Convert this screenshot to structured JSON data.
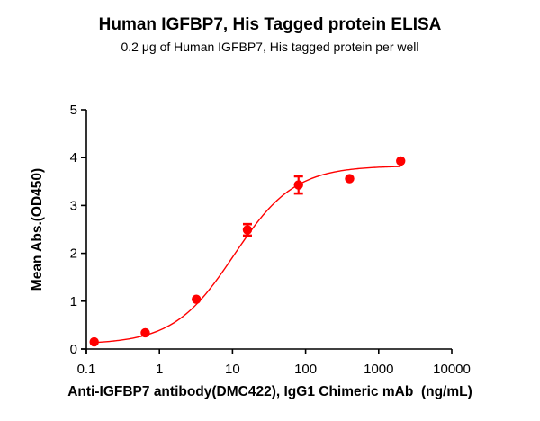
{
  "chart_data": {
    "type": "scatter",
    "title": "Human IGFBP7, His Tagged protein ELISA",
    "subtitle": "0.2 μg of Human IGFBP7, His tagged protein per well",
    "xlabel": "Anti-IGFBP7 antibody(DMC422), IgG1 Chimeric mAb  (ng/mL)",
    "ylabel": "Mean Abs.(OD450)",
    "xscale": "log",
    "xlim": [
      0.1,
      10000
    ],
    "ylim": [
      0,
      5
    ],
    "xticks": [
      "0.1",
      "1",
      "10",
      "100",
      "1000",
      "10000"
    ],
    "yticks": [
      "0",
      "1",
      "2",
      "3",
      "4",
      "5"
    ],
    "grid": false,
    "legend": null,
    "series": [
      {
        "name": "Human IGFBP7, His Tagged protein",
        "color": "#ff0000",
        "x": [
          0.128,
          0.64,
          3.2,
          16,
          80,
          400,
          2000
        ],
        "y": [
          0.15,
          0.34,
          1.04,
          2.49,
          3.43,
          3.56,
          3.93
        ],
        "error": [
          0.02,
          0.02,
          0.03,
          0.12,
          0.18,
          0.03,
          0.03
        ],
        "fit": "4PL sigmoid",
        "fit_params": {
          "bottom": 0.1,
          "top": 3.83,
          "ec50": 10.5,
          "hill": 1.05
        }
      }
    ]
  }
}
